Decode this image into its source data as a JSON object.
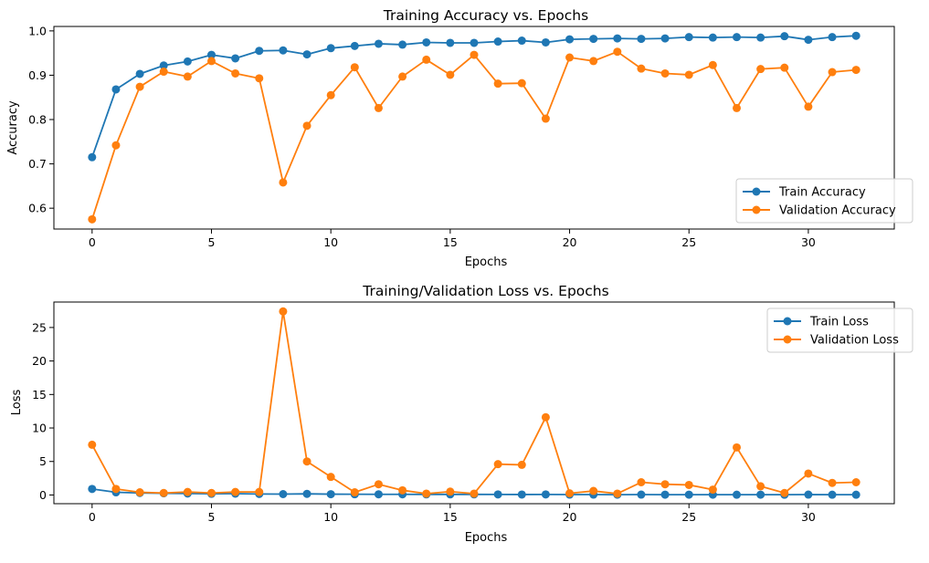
{
  "chart_data": [
    {
      "type": "line",
      "title": "Training Accuracy vs. Epochs",
      "xlabel": "Epochs",
      "ylabel": "Accuracy",
      "xlim": [
        -1.6,
        33.6
      ],
      "ylim": [
        0.553,
        1.01
      ],
      "xticks": [
        0,
        5,
        10,
        15,
        20,
        25,
        30
      ],
      "yticks": [
        0.6,
        0.7,
        0.8,
        0.9,
        1.0
      ],
      "ytick_labels": [
        "0.6",
        "0.7",
        "0.8",
        "0.9",
        "1.0"
      ],
      "legend_position": "lower-right",
      "grid": false,
      "x": [
        0,
        1,
        2,
        3,
        4,
        5,
        6,
        7,
        8,
        9,
        10,
        11,
        12,
        13,
        14,
        15,
        16,
        17,
        18,
        19,
        20,
        21,
        22,
        23,
        24,
        25,
        26,
        27,
        28,
        29,
        30,
        31,
        32
      ],
      "series": [
        {
          "name": "Train Accuracy",
          "color": "#1f77b4",
          "values": [
            0.715,
            0.868,
            0.903,
            0.922,
            0.931,
            0.946,
            0.938,
            0.955,
            0.956,
            0.947,
            0.961,
            0.966,
            0.971,
            0.969,
            0.974,
            0.973,
            0.973,
            0.976,
            0.978,
            0.974,
            0.981,
            0.982,
            0.983,
            0.982,
            0.983,
            0.986,
            0.985,
            0.986,
            0.985,
            0.988,
            0.98,
            0.986,
            0.989
          ]
        },
        {
          "name": "Validation Accuracy",
          "color": "#ff7f0e",
          "values": [
            0.575,
            0.742,
            0.874,
            0.908,
            0.897,
            0.932,
            0.904,
            0.893,
            0.658,
            0.786,
            0.855,
            0.918,
            0.826,
            0.897,
            0.935,
            0.901,
            0.946,
            0.881,
            0.882,
            0.802,
            0.94,
            0.932,
            0.953,
            0.915,
            0.904,
            0.901,
            0.923,
            0.826,
            0.914,
            0.917,
            0.829,
            0.907,
            0.912
          ]
        }
      ]
    },
    {
      "type": "line",
      "title": "Training/Validation Loss vs. Epochs",
      "xlabel": "Epochs",
      "ylabel": "Loss",
      "xlim": [
        -1.6,
        33.6
      ],
      "ylim": [
        -1.3,
        28.8
      ],
      "xticks": [
        0,
        5,
        10,
        15,
        20,
        25,
        30
      ],
      "yticks": [
        0,
        5,
        10,
        15,
        20,
        25
      ],
      "ytick_labels": [
        "0",
        "5",
        "10",
        "15",
        "20",
        "25"
      ],
      "legend_position": "upper-right",
      "grid": false,
      "x": [
        0,
        1,
        2,
        3,
        4,
        5,
        6,
        7,
        8,
        9,
        10,
        11,
        12,
        13,
        14,
        15,
        16,
        17,
        18,
        19,
        20,
        21,
        22,
        23,
        24,
        25,
        26,
        27,
        28,
        29,
        30,
        31,
        32
      ],
      "series": [
        {
          "name": "Train Loss",
          "color": "#1f77b4",
          "values": [
            0.9,
            0.4,
            0.3,
            0.25,
            0.22,
            0.18,
            0.2,
            0.15,
            0.13,
            0.17,
            0.12,
            0.11,
            0.1,
            0.1,
            0.09,
            0.09,
            0.09,
            0.08,
            0.07,
            0.08,
            0.06,
            0.06,
            0.05,
            0.06,
            0.05,
            0.05,
            0.05,
            0.04,
            0.05,
            0.04,
            0.06,
            0.04,
            0.04
          ]
        },
        {
          "name": "Validation Loss",
          "color": "#ff7f0e",
          "values": [
            7.5,
            0.9,
            0.4,
            0.3,
            0.45,
            0.3,
            0.45,
            0.45,
            27.4,
            5.0,
            2.7,
            0.4,
            1.6,
            0.7,
            0.2,
            0.5,
            0.2,
            4.6,
            4.5,
            11.6,
            0.25,
            0.6,
            0.2,
            1.9,
            1.6,
            1.5,
            0.8,
            7.1,
            1.3,
            0.3,
            3.2,
            1.8,
            1.9
          ]
        }
      ]
    }
  ]
}
